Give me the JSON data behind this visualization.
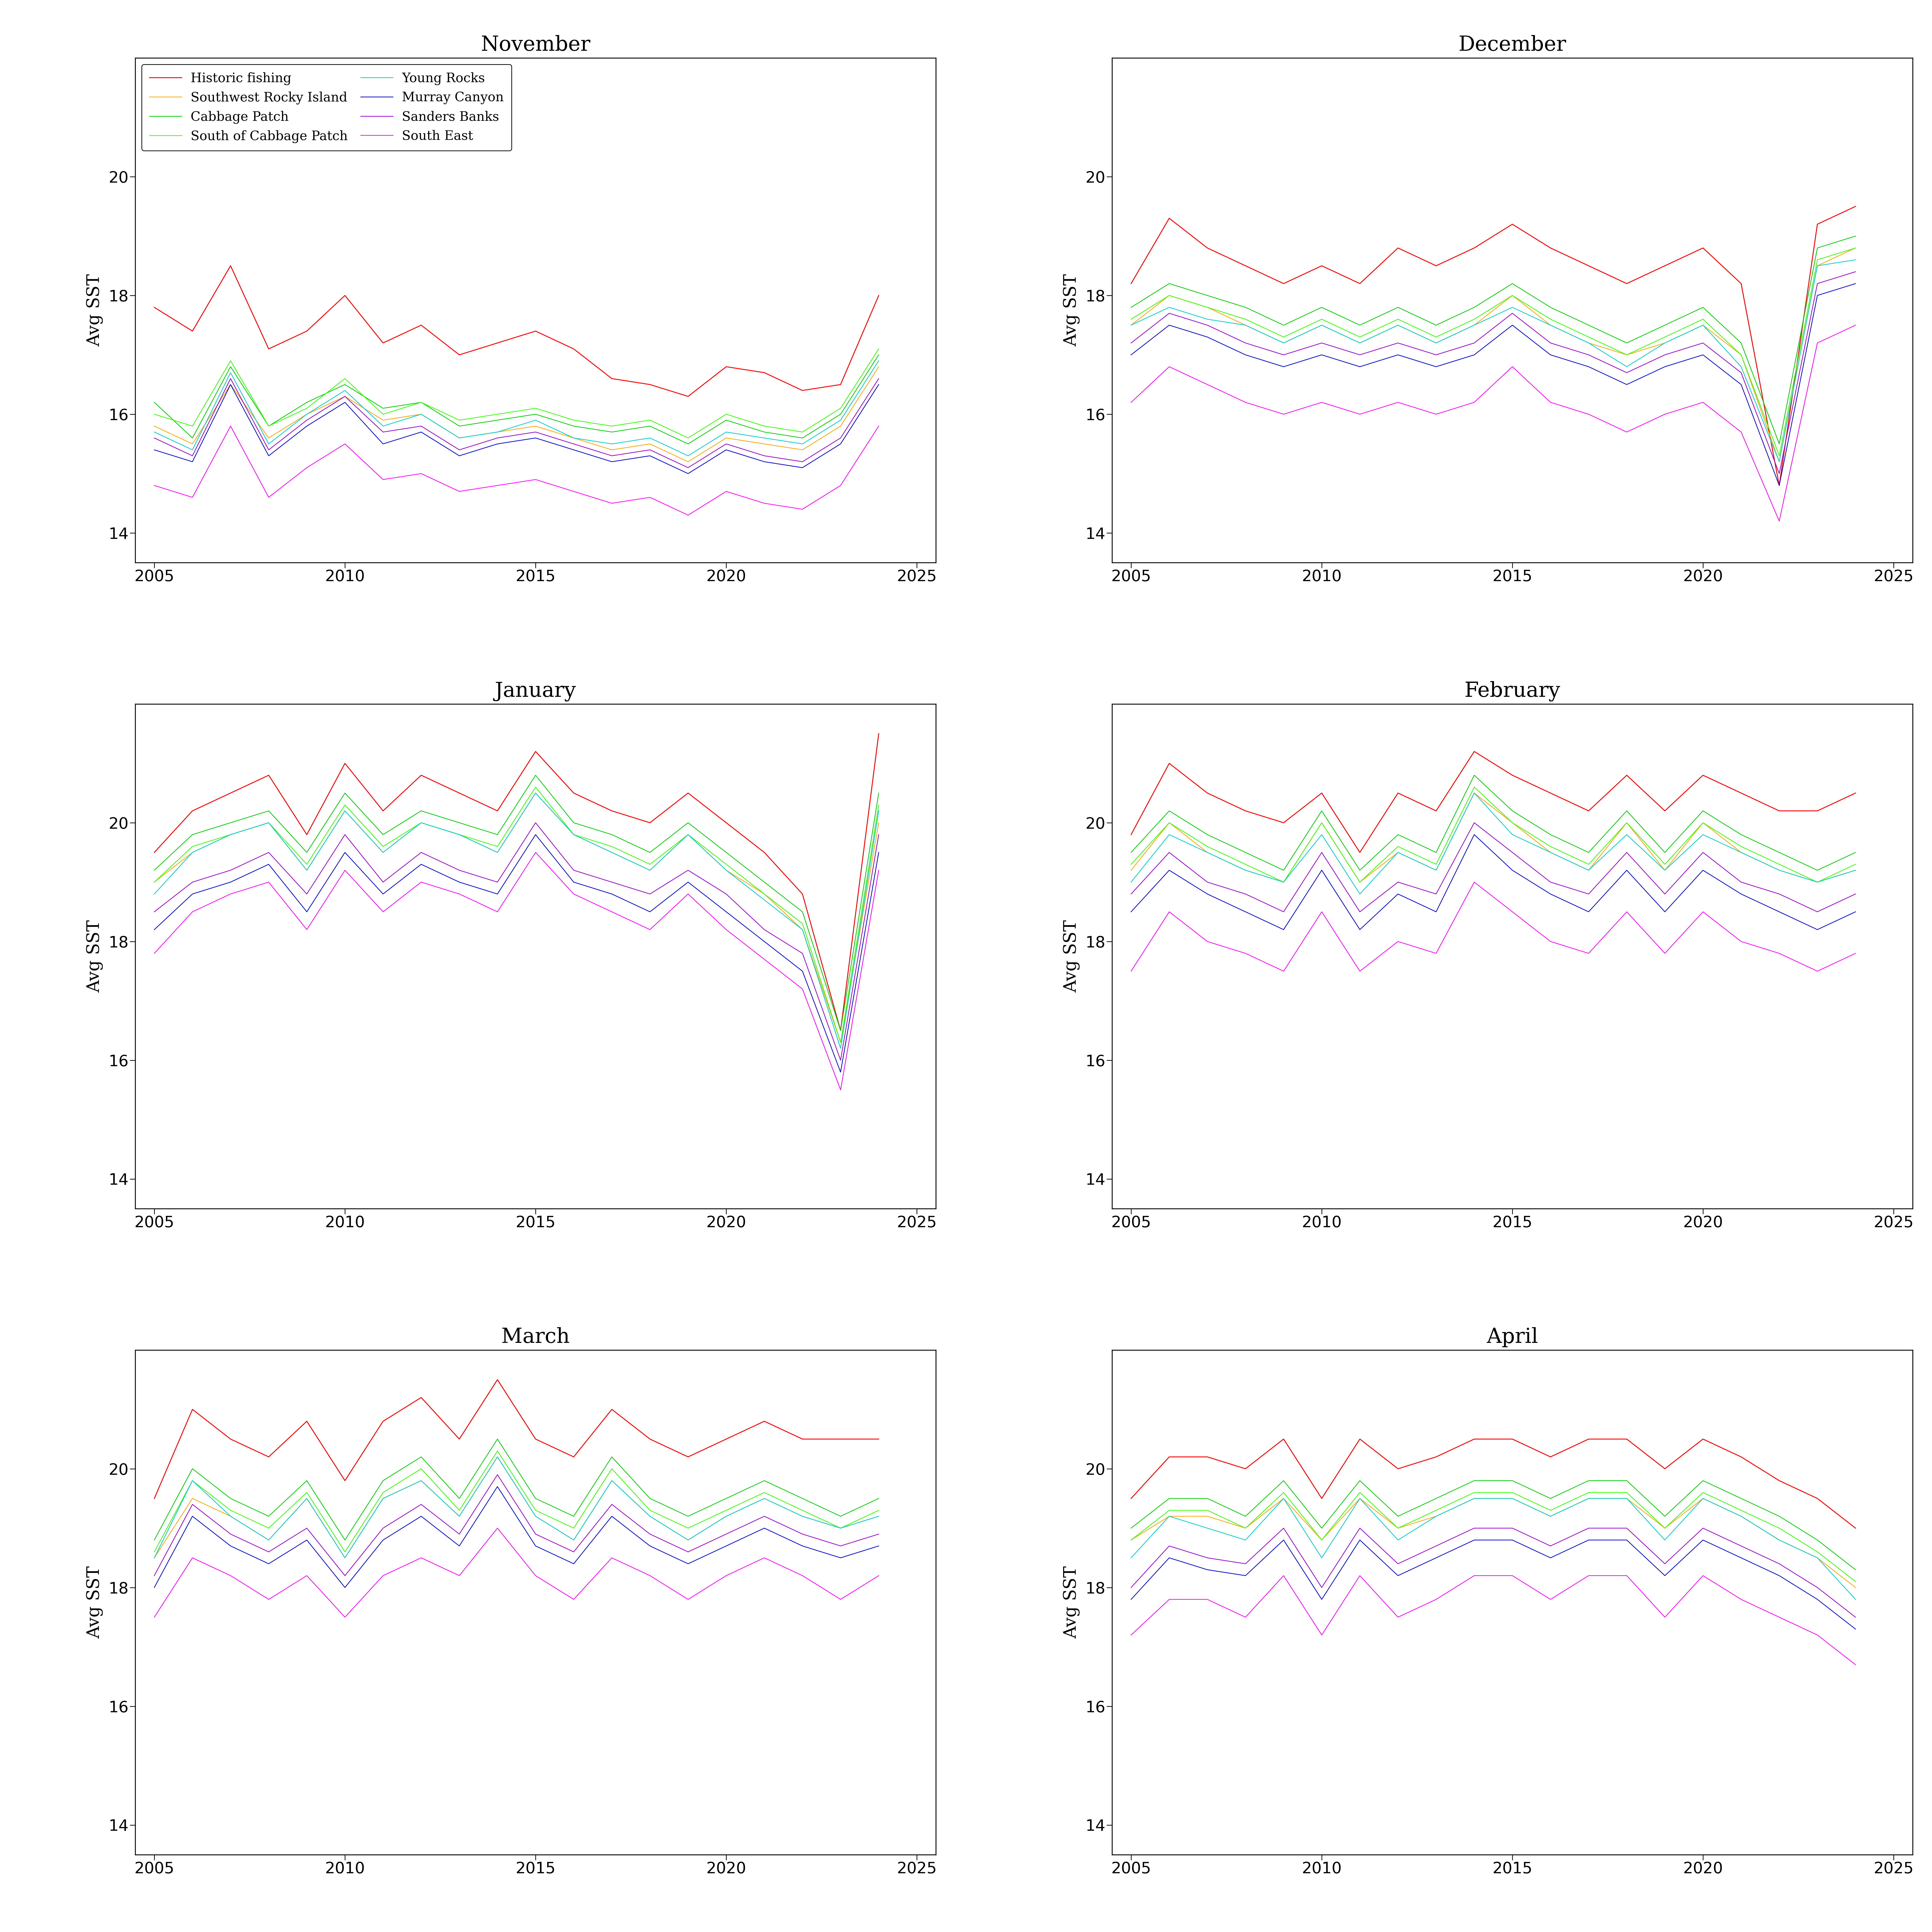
{
  "months": [
    "November",
    "December",
    "January",
    "February",
    "March",
    "April"
  ],
  "years": [
    2005,
    2006,
    2007,
    2008,
    2009,
    2010,
    2011,
    2012,
    2013,
    2014,
    2015,
    2016,
    2017,
    2018,
    2019,
    2020,
    2021,
    2022,
    2023,
    2024
  ],
  "series_names": [
    "Historic fishing",
    "Southwest Rocky Island",
    "Cabbage Patch",
    "South of Cabbage Patch",
    "Young Rocks",
    "Murray Canyon",
    "Sanders Banks",
    "South East"
  ],
  "series_colors": [
    "#FF0000",
    "#FFA500",
    "#00CC00",
    "#33FF00",
    "#00CCCC",
    "#0000CC",
    "#9900CC",
    "#FF00FF"
  ],
  "series_linewidths": [
    2.5,
    2.0,
    2.0,
    2.0,
    2.0,
    2.0,
    2.0,
    2.0
  ],
  "ylabel": "Avg SST",
  "xlim": [
    2004.5,
    2025.5
  ],
  "ylim": [
    13.5,
    22
  ],
  "yticks": [
    14,
    16,
    18,
    20
  ],
  "xticks": [
    2005,
    2010,
    2015,
    2020,
    2025
  ],
  "background_color": "#FFFFFF",
  "data": {
    "November": {
      "Historic fishing": [
        17.8,
        17.4,
        18.5,
        17.1,
        17.4,
        18.0,
        17.2,
        17.5,
        17.0,
        17.2,
        17.4,
        17.1,
        16.6,
        16.5,
        16.3,
        16.8,
        16.7,
        16.4,
        16.5,
        18.0
      ],
      "Southwest Rocky Island": [
        15.8,
        15.5,
        16.5,
        15.6,
        16.0,
        16.3,
        15.9,
        16.0,
        15.6,
        15.7,
        15.8,
        15.6,
        15.4,
        15.5,
        15.2,
        15.6,
        15.5,
        15.4,
        15.8,
        16.8
      ],
      "Cabbage Patch": [
        16.2,
        15.6,
        16.8,
        15.8,
        16.2,
        16.5,
        16.1,
        16.2,
        15.8,
        15.9,
        16.0,
        15.8,
        15.7,
        15.8,
        15.5,
        15.9,
        15.7,
        15.6,
        16.0,
        17.0
      ],
      "South of Cabbage Patch": [
        16.0,
        15.8,
        16.9,
        15.8,
        16.1,
        16.6,
        16.0,
        16.2,
        15.9,
        16.0,
        16.1,
        15.9,
        15.8,
        15.9,
        15.6,
        16.0,
        15.8,
        15.7,
        16.1,
        17.1
      ],
      "Young Rocks": [
        15.7,
        15.4,
        16.7,
        15.5,
        16.0,
        16.4,
        15.8,
        16.0,
        15.6,
        15.7,
        15.9,
        15.6,
        15.5,
        15.6,
        15.3,
        15.7,
        15.6,
        15.5,
        15.9,
        16.9
      ],
      "Murray Canyon": [
        15.4,
        15.2,
        16.5,
        15.3,
        15.8,
        16.2,
        15.5,
        15.7,
        15.3,
        15.5,
        15.6,
        15.4,
        15.2,
        15.3,
        15.0,
        15.4,
        15.2,
        15.1,
        15.5,
        16.5
      ],
      "Sanders Banks": [
        15.6,
        15.3,
        16.6,
        15.4,
        15.9,
        16.3,
        15.7,
        15.8,
        15.4,
        15.6,
        15.7,
        15.5,
        15.3,
        15.4,
        15.1,
        15.5,
        15.3,
        15.2,
        15.6,
        16.6
      ],
      "South East": [
        14.8,
        14.6,
        15.8,
        14.6,
        15.1,
        15.5,
        14.9,
        15.0,
        14.7,
        14.8,
        14.9,
        14.7,
        14.5,
        14.6,
        14.3,
        14.7,
        14.5,
        14.4,
        14.8,
        15.8
      ]
    },
    "December": {
      "Historic fishing": [
        18.2,
        19.3,
        18.8,
        18.5,
        18.2,
        18.5,
        18.2,
        18.8,
        18.5,
        18.8,
        19.2,
        18.8,
        18.5,
        18.2,
        18.5,
        18.8,
        18.2,
        14.8,
        19.2,
        19.5
      ],
      "Southwest Rocky Island": [
        17.5,
        18.0,
        17.8,
        17.5,
        17.2,
        17.5,
        17.2,
        17.5,
        17.2,
        17.5,
        18.0,
        17.5,
        17.2,
        17.0,
        17.2,
        17.5,
        17.0,
        15.2,
        18.5,
        18.8
      ],
      "Cabbage Patch": [
        17.8,
        18.2,
        18.0,
        17.8,
        17.5,
        17.8,
        17.5,
        17.8,
        17.5,
        17.8,
        18.2,
        17.8,
        17.5,
        17.2,
        17.5,
        17.8,
        17.2,
        15.5,
        18.8,
        19.0
      ],
      "South of Cabbage Patch": [
        17.6,
        18.0,
        17.8,
        17.6,
        17.3,
        17.6,
        17.3,
        17.6,
        17.3,
        17.6,
        18.0,
        17.6,
        17.3,
        17.0,
        17.3,
        17.6,
        17.0,
        15.3,
        18.6,
        18.8
      ],
      "Young Rocks": [
        17.5,
        17.8,
        17.6,
        17.5,
        17.2,
        17.5,
        17.2,
        17.5,
        17.2,
        17.5,
        17.8,
        17.5,
        17.2,
        16.8,
        17.2,
        17.5,
        16.8,
        15.2,
        18.5,
        18.6
      ],
      "Murray Canyon": [
        17.0,
        17.5,
        17.3,
        17.0,
        16.8,
        17.0,
        16.8,
        17.0,
        16.8,
        17.0,
        17.5,
        17.0,
        16.8,
        16.5,
        16.8,
        17.0,
        16.5,
        14.8,
        18.0,
        18.2
      ],
      "Sanders Banks": [
        17.2,
        17.7,
        17.5,
        17.2,
        17.0,
        17.2,
        17.0,
        17.2,
        17.0,
        17.2,
        17.7,
        17.2,
        17.0,
        16.7,
        17.0,
        17.2,
        16.7,
        15.0,
        18.2,
        18.4
      ],
      "South East": [
        16.2,
        16.8,
        16.5,
        16.2,
        16.0,
        16.2,
        16.0,
        16.2,
        16.0,
        16.2,
        16.8,
        16.2,
        16.0,
        15.7,
        16.0,
        16.2,
        15.7,
        14.2,
        17.2,
        17.5
      ]
    },
    "January": {
      "Historic fishing": [
        19.5,
        20.2,
        20.5,
        20.8,
        19.8,
        21.0,
        20.2,
        20.8,
        20.5,
        20.2,
        21.2,
        20.5,
        20.2,
        20.0,
        20.5,
        20.0,
        19.5,
        18.8,
        16.5,
        21.5
      ],
      "Southwest Rocky Island": [
        19.0,
        19.5,
        19.8,
        20.0,
        19.2,
        20.2,
        19.5,
        20.0,
        19.8,
        19.5,
        20.5,
        19.8,
        19.5,
        19.2,
        19.8,
        19.2,
        18.8,
        18.2,
        16.3,
        20.0
      ],
      "Cabbage Patch": [
        19.2,
        19.8,
        20.0,
        20.2,
        19.5,
        20.5,
        19.8,
        20.2,
        20.0,
        19.8,
        20.8,
        20.0,
        19.8,
        19.5,
        20.0,
        19.5,
        19.0,
        18.5,
        16.5,
        20.5
      ],
      "South of Cabbage Patch": [
        19.0,
        19.6,
        19.8,
        20.0,
        19.3,
        20.3,
        19.6,
        20.0,
        19.8,
        19.6,
        20.6,
        19.8,
        19.6,
        19.3,
        19.8,
        19.3,
        18.8,
        18.3,
        16.3,
        20.3
      ],
      "Young Rocks": [
        18.8,
        19.5,
        19.8,
        20.0,
        19.2,
        20.2,
        19.5,
        20.0,
        19.8,
        19.5,
        20.5,
        19.8,
        19.5,
        19.2,
        19.8,
        19.2,
        18.7,
        18.2,
        16.2,
        20.2
      ],
      "Murray Canyon": [
        18.2,
        18.8,
        19.0,
        19.3,
        18.5,
        19.5,
        18.8,
        19.3,
        19.0,
        18.8,
        19.8,
        19.0,
        18.8,
        18.5,
        19.0,
        18.5,
        18.0,
        17.5,
        15.8,
        19.5
      ],
      "Sanders Banks": [
        18.5,
        19.0,
        19.2,
        19.5,
        18.8,
        19.8,
        19.0,
        19.5,
        19.2,
        19.0,
        20.0,
        19.2,
        19.0,
        18.8,
        19.2,
        18.8,
        18.2,
        17.8,
        16.0,
        19.8
      ],
      "South East": [
        17.8,
        18.5,
        18.8,
        19.0,
        18.2,
        19.2,
        18.5,
        19.0,
        18.8,
        18.5,
        19.5,
        18.8,
        18.5,
        18.2,
        18.8,
        18.2,
        17.7,
        17.2,
        15.5,
        19.2
      ]
    },
    "February": {
      "Historic fishing": [
        19.8,
        21.0,
        20.5,
        20.2,
        20.0,
        20.5,
        19.5,
        20.5,
        20.2,
        21.2,
        20.8,
        20.5,
        20.2,
        20.8,
        20.2,
        20.8,
        20.5,
        20.2,
        20.2,
        20.5
      ],
      "Southwest Rocky Island": [
        19.2,
        20.0,
        19.5,
        19.2,
        19.0,
        20.0,
        19.0,
        19.5,
        19.2,
        20.5,
        20.0,
        19.5,
        19.2,
        20.0,
        19.2,
        20.0,
        19.5,
        19.2,
        19.0,
        19.2
      ],
      "Cabbage Patch": [
        19.5,
        20.2,
        19.8,
        19.5,
        19.2,
        20.2,
        19.2,
        19.8,
        19.5,
        20.8,
        20.2,
        19.8,
        19.5,
        20.2,
        19.5,
        20.2,
        19.8,
        19.5,
        19.2,
        19.5
      ],
      "South of Cabbage Patch": [
        19.3,
        20.0,
        19.6,
        19.3,
        19.0,
        20.0,
        19.0,
        19.6,
        19.3,
        20.6,
        20.0,
        19.6,
        19.3,
        20.0,
        19.3,
        20.0,
        19.6,
        19.3,
        19.0,
        19.3
      ],
      "Young Rocks": [
        19.0,
        19.8,
        19.5,
        19.2,
        19.0,
        19.8,
        18.8,
        19.5,
        19.2,
        20.5,
        19.8,
        19.5,
        19.2,
        19.8,
        19.2,
        19.8,
        19.5,
        19.2,
        19.0,
        19.2
      ],
      "Murray Canyon": [
        18.5,
        19.2,
        18.8,
        18.5,
        18.2,
        19.2,
        18.2,
        18.8,
        18.5,
        19.8,
        19.2,
        18.8,
        18.5,
        19.2,
        18.5,
        19.2,
        18.8,
        18.5,
        18.2,
        18.5
      ],
      "Sanders Banks": [
        18.8,
        19.5,
        19.0,
        18.8,
        18.5,
        19.5,
        18.5,
        19.0,
        18.8,
        20.0,
        19.5,
        19.0,
        18.8,
        19.5,
        18.8,
        19.5,
        19.0,
        18.8,
        18.5,
        18.8
      ],
      "South East": [
        17.5,
        18.5,
        18.0,
        17.8,
        17.5,
        18.5,
        17.5,
        18.0,
        17.8,
        19.0,
        18.5,
        18.0,
        17.8,
        18.5,
        17.8,
        18.5,
        18.0,
        17.8,
        17.5,
        17.8
      ]
    },
    "March": {
      "Historic fishing": [
        19.5,
        21.0,
        20.5,
        20.2,
        20.8,
        19.8,
        20.8,
        21.2,
        20.5,
        21.5,
        20.5,
        20.2,
        21.0,
        20.5,
        20.2,
        20.5,
        20.8,
        20.5,
        20.5,
        20.5
      ],
      "Southwest Rocky Island": [
        18.5,
        19.5,
        19.2,
        18.8,
        19.5,
        18.5,
        19.5,
        19.8,
        19.2,
        20.2,
        19.2,
        18.8,
        19.8,
        19.2,
        18.8,
        19.2,
        19.5,
        19.2,
        19.0,
        19.2
      ],
      "Cabbage Patch": [
        18.8,
        20.0,
        19.5,
        19.2,
        19.8,
        18.8,
        19.8,
        20.2,
        19.5,
        20.5,
        19.5,
        19.2,
        20.2,
        19.5,
        19.2,
        19.5,
        19.8,
        19.5,
        19.2,
        19.5
      ],
      "South of Cabbage Patch": [
        18.6,
        19.8,
        19.3,
        19.0,
        19.6,
        18.6,
        19.6,
        20.0,
        19.3,
        20.3,
        19.3,
        19.0,
        20.0,
        19.3,
        19.0,
        19.3,
        19.6,
        19.3,
        19.0,
        19.3
      ],
      "Young Rocks": [
        18.5,
        19.8,
        19.2,
        18.8,
        19.5,
        18.5,
        19.5,
        19.8,
        19.2,
        20.2,
        19.2,
        18.8,
        19.8,
        19.2,
        18.8,
        19.2,
        19.5,
        19.2,
        19.0,
        19.2
      ],
      "Murray Canyon": [
        18.0,
        19.2,
        18.7,
        18.4,
        18.8,
        18.0,
        18.8,
        19.2,
        18.7,
        19.7,
        18.7,
        18.4,
        19.2,
        18.7,
        18.4,
        18.7,
        19.0,
        18.7,
        18.5,
        18.7
      ],
      "Sanders Banks": [
        18.2,
        19.4,
        18.9,
        18.6,
        19.0,
        18.2,
        19.0,
        19.4,
        18.9,
        19.9,
        18.9,
        18.6,
        19.4,
        18.9,
        18.6,
        18.9,
        19.2,
        18.9,
        18.7,
        18.9
      ],
      "South East": [
        17.5,
        18.5,
        18.2,
        17.8,
        18.2,
        17.5,
        18.2,
        18.5,
        18.2,
        19.0,
        18.2,
        17.8,
        18.5,
        18.2,
        17.8,
        18.2,
        18.5,
        18.2,
        17.8,
        18.2
      ]
    },
    "April": {
      "Historic fishing": [
        19.5,
        20.2,
        20.2,
        20.0,
        20.5,
        19.5,
        20.5,
        20.0,
        20.2,
        20.5,
        20.5,
        20.2,
        20.5,
        20.5,
        20.0,
        20.5,
        20.2,
        19.8,
        19.5,
        19.0
      ],
      "Southwest Rocky Island": [
        18.8,
        19.2,
        19.2,
        19.0,
        19.5,
        18.8,
        19.5,
        19.0,
        19.2,
        19.5,
        19.5,
        19.2,
        19.5,
        19.5,
        19.0,
        19.5,
        19.2,
        18.8,
        18.5,
        18.0
      ],
      "Cabbage Patch": [
        19.0,
        19.5,
        19.5,
        19.2,
        19.8,
        19.0,
        19.8,
        19.2,
        19.5,
        19.8,
        19.8,
        19.5,
        19.8,
        19.8,
        19.2,
        19.8,
        19.5,
        19.2,
        18.8,
        18.3
      ],
      "South of Cabbage Patch": [
        18.8,
        19.3,
        19.3,
        19.0,
        19.6,
        18.8,
        19.6,
        19.0,
        19.3,
        19.6,
        19.6,
        19.3,
        19.6,
        19.6,
        19.0,
        19.6,
        19.3,
        19.0,
        18.6,
        18.1
      ],
      "Young Rocks": [
        18.5,
        19.2,
        19.0,
        18.8,
        19.5,
        18.5,
        19.5,
        18.8,
        19.2,
        19.5,
        19.5,
        19.2,
        19.5,
        19.5,
        18.8,
        19.5,
        19.2,
        18.8,
        18.5,
        17.8
      ],
      "Murray Canyon": [
        17.8,
        18.5,
        18.3,
        18.2,
        18.8,
        17.8,
        18.8,
        18.2,
        18.5,
        18.8,
        18.8,
        18.5,
        18.8,
        18.8,
        18.2,
        18.8,
        18.5,
        18.2,
        17.8,
        17.3
      ],
      "Sanders Banks": [
        18.0,
        18.7,
        18.5,
        18.4,
        19.0,
        18.0,
        19.0,
        18.4,
        18.7,
        19.0,
        19.0,
        18.7,
        19.0,
        19.0,
        18.4,
        19.0,
        18.7,
        18.4,
        18.0,
        17.5
      ],
      "South East": [
        17.2,
        17.8,
        17.8,
        17.5,
        18.2,
        17.2,
        18.2,
        17.5,
        17.8,
        18.2,
        18.2,
        17.8,
        18.2,
        18.2,
        17.5,
        18.2,
        17.8,
        17.5,
        17.2,
        16.7
      ]
    }
  }
}
